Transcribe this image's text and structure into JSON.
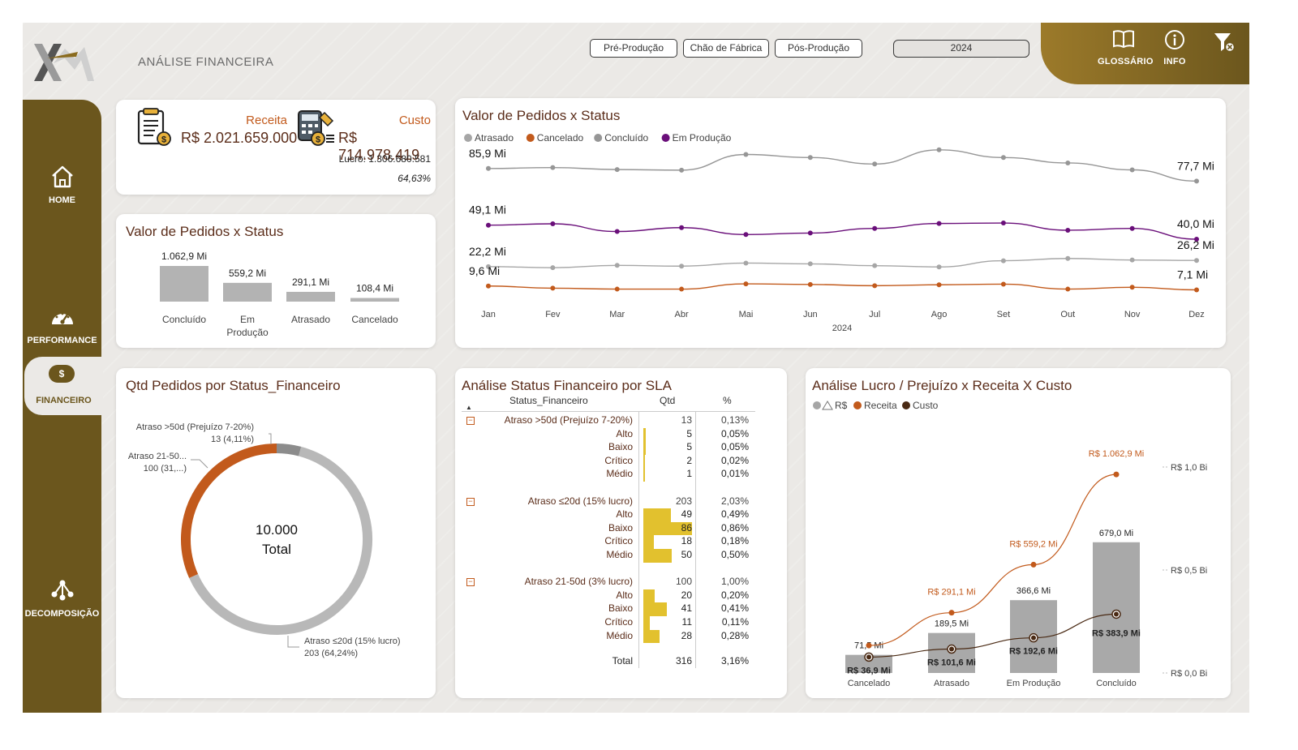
{
  "header": {
    "title": "ANÁLISE FINANCEIRA",
    "filters": [
      "Pré-Produção",
      "Chão de Fábrica",
      "Pós-Produção"
    ],
    "year": "2024",
    "glossary": "GLOSSÁRIO",
    "info": "INFO"
  },
  "nav": {
    "home": "HOME",
    "performance": "PERFORMANCE",
    "financeiro": "FINANCEIRO",
    "financeiro_icon": "$",
    "decomposicao": "DECOMPOSIÇÃO"
  },
  "kpi": {
    "receita_label": "Receita",
    "receita_value": "R$ 2.021.659.000",
    "custo_label": "Custo",
    "custo_value": "R$ 714.978.419",
    "lucro": "Lucro: 1.306.680.581",
    "margin": "64,63%"
  },
  "status_bar": {
    "title": "Valor de Pedidos x Status",
    "chart_data": {
      "type": "bar",
      "categories": [
        "Concluído",
        "Em Produção",
        "Atrasado",
        "Cancelado"
      ],
      "values": [
        1062.9,
        559.2,
        291.1,
        108.4
      ],
      "labels": [
        "1.062,9 Mi",
        "559,2 Mi",
        "291,1 Mi",
        "108,4 Mi"
      ],
      "unit": "Mi",
      "color": "#b3b3b3"
    }
  },
  "status_line": {
    "title": "Valor de Pedidos x Status",
    "xlabel": "2024",
    "chart_data": {
      "type": "line",
      "categories": [
        "Jan",
        "Fev",
        "Mar",
        "Abr",
        "Mai",
        "Jun",
        "Jul",
        "Ago",
        "Set",
        "Out",
        "Nov",
        "Dez"
      ],
      "series": [
        {
          "name": "Atrasado",
          "color": "#a6a6a6",
          "values": [
            22.2,
            21.5,
            23.0,
            22.5,
            24.5,
            24.0,
            22.8,
            22.0,
            26.0,
            27.5,
            26.5,
            26.2
          ],
          "start_label": "22,2 Mi",
          "end_label": "26,2 Mi"
        },
        {
          "name": "Cancelado",
          "color": "#c25a1c",
          "values": [
            9.6,
            8.2,
            7.6,
            7.6,
            11.0,
            10.6,
            9.8,
            10.4,
            10.8,
            7.6,
            8.8,
            7.1
          ],
          "start_label": "9,6 Mi",
          "end_label": "7,1 Mi"
        },
        {
          "name": "Concluído",
          "color": "#969696",
          "values": [
            85.9,
            86.5,
            85.2,
            84.8,
            95.0,
            93.0,
            88.8,
            98.0,
            93.0,
            89.5,
            85.0,
            77.7
          ],
          "start_label": "85,9 Mi",
          "end_label": "77,7 Mi"
        },
        {
          "name": "Em Produção",
          "color": "#6a0f7a",
          "values": [
            49.1,
            50.0,
            45.0,
            47.5,
            43.0,
            44.0,
            47.0,
            50.2,
            50.5,
            45.8,
            47.0,
            40.0
          ],
          "start_label": "49,1 Mi",
          "end_label": "40,0 Mi"
        }
      ],
      "ylim": [
        0,
        100
      ]
    }
  },
  "donut": {
    "title": "Qtd Pedidos por Status_Financeiro",
    "center_value": "10.000",
    "center_label": "Total",
    "chart_data": {
      "type": "pie",
      "slices": [
        {
          "name": "Atraso ≤20d (15% lucro)",
          "value": 203,
          "pct": "64,24%",
          "color": "#b8b8b8",
          "label": "Atraso ≤20d (15% lucro)",
          "sublabel": "203 (64,24%)"
        },
        {
          "name": "Atraso 21-50d (3% lucro)",
          "value": 100,
          "pct": "31,...",
          "color": "#c25a1c",
          "label": "Atraso 21-50...",
          "sublabel": "100 (31,...)"
        },
        {
          "name": "Atraso >50d (Prejuízo 7-20%)",
          "value": 13,
          "pct": "4,11%",
          "color": "#8c8c8c",
          "label": "Atraso >50d (Prejuízo 7-20%)",
          "sublabel": "13 (4,11%)"
        }
      ]
    }
  },
  "sla_table": {
    "title": "Análise Status Financeiro por SLA",
    "headers": [
      "Status_Financeiro",
      "Qtd",
      "%"
    ],
    "max_qtd": 86,
    "groups": [
      {
        "name": "Atraso >50d (Prejuízo 7-20%)",
        "qtd": "13",
        "pct": "0,13%",
        "rows": [
          {
            "name": "Alto",
            "qtd": 5,
            "pct": "0,05%"
          },
          {
            "name": "Baixo",
            "qtd": 5,
            "pct": "0,05%"
          },
          {
            "name": "Crítico",
            "qtd": 2,
            "pct": "0,02%"
          },
          {
            "name": "Médio",
            "qtd": 1,
            "pct": "0,01%"
          }
        ]
      },
      {
        "name": "Atraso ≤20d (15% lucro)",
        "qtd": "203",
        "pct": "2,03%",
        "rows": [
          {
            "name": "Alto",
            "qtd": 49,
            "pct": "0,49%"
          },
          {
            "name": "Baixo",
            "qtd": 86,
            "pct": "0,86%"
          },
          {
            "name": "Crítico",
            "qtd": 18,
            "pct": "0,18%"
          },
          {
            "name": "Médio",
            "qtd": 50,
            "pct": "0,50%"
          }
        ]
      },
      {
        "name": "Atraso 21-50d (3% lucro)",
        "qtd": "100",
        "pct": "1,00%",
        "rows": [
          {
            "name": "Alto",
            "qtd": 20,
            "pct": "0,20%"
          },
          {
            "name": "Baixo",
            "qtd": 41,
            "pct": "0,41%"
          },
          {
            "name": "Crítico",
            "qtd": 11,
            "pct": "0,11%"
          },
          {
            "name": "Médio",
            "qtd": 28,
            "pct": "0,28%"
          }
        ]
      }
    ],
    "total": {
      "label": "Total",
      "qtd": "316",
      "pct": "3,16%"
    }
  },
  "lucro": {
    "title": "Análise Lucro / Prejuízo x Receita X Custo",
    "legend": [
      "R$",
      "Receita",
      "Custo"
    ],
    "legend_colors": [
      "#a6a6a6",
      "#c25a1c",
      "#4a2a14"
    ],
    "chart_data": {
      "type": "bar",
      "categories": [
        "Cancelado",
        "Atrasado",
        "Em Produção",
        "Concluído"
      ],
      "bars": [
        71.5,
        189.5,
        366.6,
        679.0
      ],
      "bar_labels": [
        "71,5 Mi",
        "189,5 Mi",
        "366,6 Mi",
        "679,0 Mi"
      ],
      "receita": [
        108.4,
        291.1,
        559.2,
        1062.9
      ],
      "receita_labels": [
        "",
        "R$ 291,1 Mi",
        "R$ 559,2 Mi",
        "R$ 1.062,9 Mi"
      ],
      "custo": [
        36.9,
        101.6,
        192.6,
        383.9
      ],
      "custo_labels": [
        "R$ 36,9 Mi",
        "R$ 101,6 Mi",
        "R$ 192,6 Mi",
        "R$ 383,9 Mi"
      ],
      "y_ticks": [
        "R$ 0,0 Bi",
        "R$ 0,5 Bi",
        "R$ 1,0 Bi"
      ],
      "y_tick_values": [
        0,
        500,
        1000
      ],
      "ylim": [
        0,
        1150
      ]
    }
  }
}
